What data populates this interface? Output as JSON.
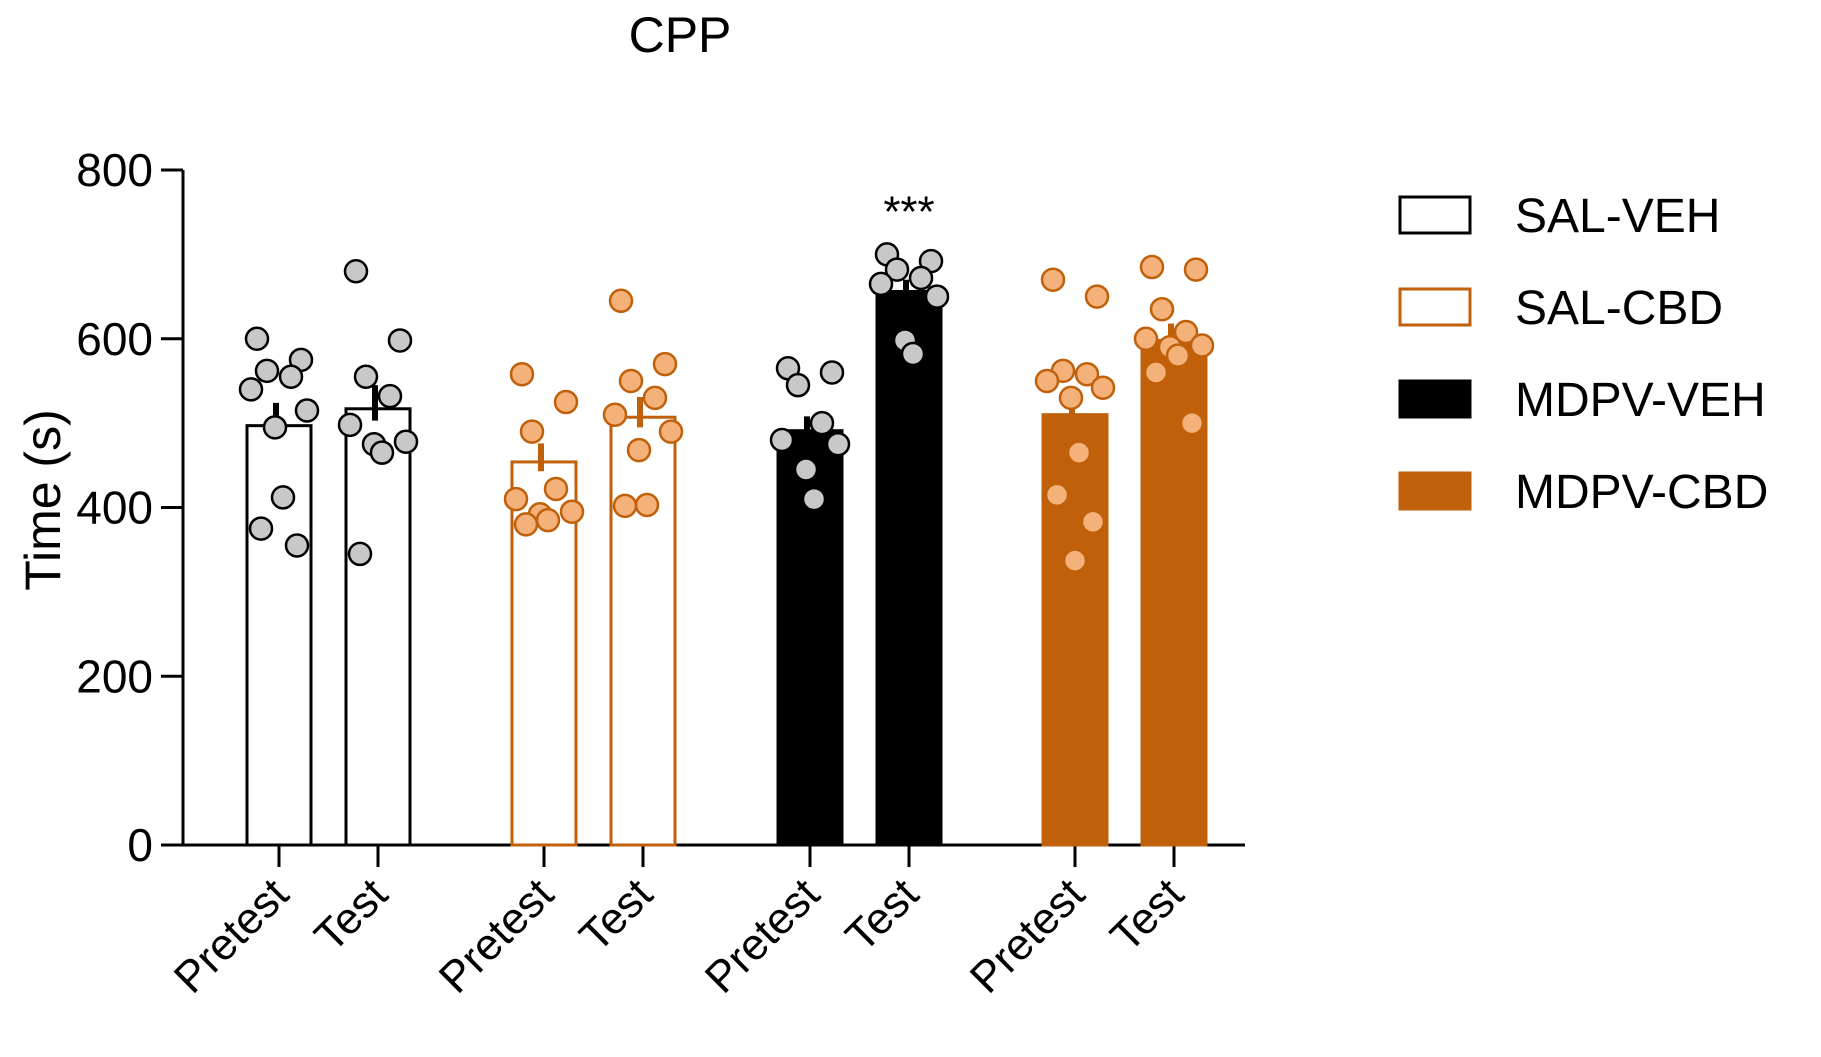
{
  "chart_data": {
    "type": "bar",
    "title": "CPP",
    "ylabel": "Time  (s)",
    "xlabel": "",
    "ylim": [
      0,
      800
    ],
    "yticks": [
      0,
      200,
      400,
      600,
      800
    ],
    "legend_position": "right",
    "groups": [
      {
        "name": "SAL-VEH",
        "fill": "#ffffff",
        "edge": "#000000",
        "point_fill": "#c8c8c8",
        "point_edge": "#000000",
        "bars": [
          {
            "label": "Pretest",
            "mean": 497,
            "sem": 27,
            "points": [
              600,
              575,
              562,
              555,
              540,
              515,
              495,
              412,
              375,
              355
            ]
          },
          {
            "label": "Test",
            "mean": 517,
            "sem": 28,
            "points": [
              680,
              598,
              555,
              532,
              498,
              478,
              475,
              465,
              345
            ]
          }
        ]
      },
      {
        "name": "SAL-CBD",
        "fill": "#ffffff",
        "edge": "#c0600a",
        "point_fill": "#f4b27a",
        "point_edge": "#c0600a",
        "bars": [
          {
            "label": "Pretest",
            "mean": 454,
            "sem": 22,
            "points": [
              558,
              525,
              490,
              422,
              410,
              395,
              392,
              385,
              380
            ]
          },
          {
            "label": "Test",
            "mean": 507,
            "sem": 24,
            "points": [
              645,
              570,
              550,
              530,
              510,
              490,
              468,
              403,
              402
            ]
          }
        ]
      },
      {
        "name": "MDPV-VEH",
        "fill": "#000000",
        "edge": "#000000",
        "point_fill": "#c8c8c8",
        "point_edge": "#000000",
        "bars": [
          {
            "label": "Pretest",
            "mean": 491,
            "sem": 17,
            "points": [
              565,
              560,
              545,
              500,
              480,
              475,
              445,
              410
            ]
          },
          {
            "label": "Test",
            "mean": 656,
            "sem": 14,
            "points": [
              700,
              692,
              682,
              672,
              665,
              650,
              598,
              582
            ],
            "annotation": "***"
          }
        ]
      },
      {
        "name": "MDPV-CBD",
        "fill": "#c0600a",
        "edge": "#c0600a",
        "point_fill": "#f4b27a",
        "point_edge": "#c0600a",
        "bars": [
          {
            "label": "Pretest",
            "mean": 510,
            "sem": 32,
            "points": [
              670,
              650,
              562,
              558,
              550,
              542,
              530,
              465,
              415,
              383,
              337
            ]
          },
          {
            "label": "Test",
            "mean": 598,
            "sem": 20,
            "points": [
              685,
              682,
              635,
              608,
              600,
              592,
              590,
              580,
              560,
              500
            ]
          }
        ]
      }
    ]
  }
}
